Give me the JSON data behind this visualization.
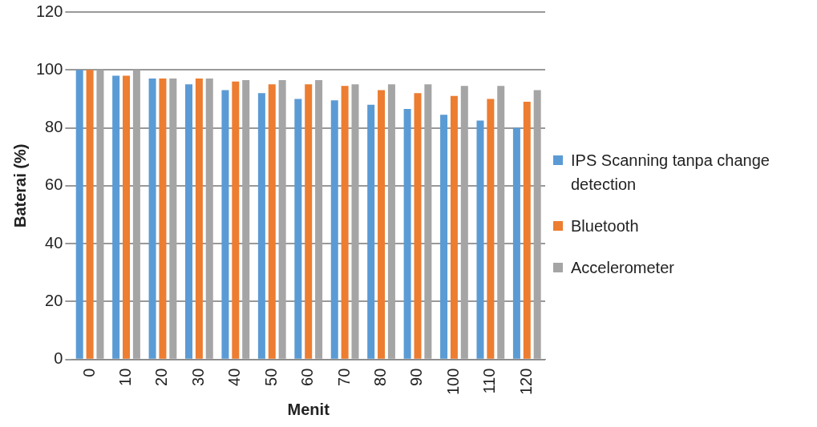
{
  "chart_data": {
    "type": "bar",
    "xlabel": "Menit",
    "ylabel": "Baterai (%)",
    "categories": [
      "0",
      "10",
      "20",
      "30",
      "40",
      "50",
      "60",
      "70",
      "80",
      "90",
      "100",
      "110",
      "120"
    ],
    "series": [
      {
        "name": "IPS Scanning tanpa change detection",
        "color": "#5b9bd5",
        "values": [
          100,
          98,
          97,
          95,
          93,
          92,
          90,
          89.5,
          88,
          86.5,
          84.5,
          82.5,
          80
        ]
      },
      {
        "name": "Bluetooth",
        "color": "#ed7d31",
        "values": [
          100,
          98,
          97,
          97,
          96,
          95,
          95,
          94.5,
          93,
          92,
          91,
          90,
          89
        ]
      },
      {
        "name": "Accelerometer",
        "color": "#a5a5a5",
        "values": [
          100,
          100,
          97,
          97,
          96.5,
          96.5,
          96.5,
          95,
          95,
          95,
          94.5,
          94.5,
          93
        ]
      }
    ],
    "ylim": [
      0,
      120
    ],
    "yticks": [
      0,
      20,
      40,
      60,
      80,
      100,
      120
    ],
    "grid": "y",
    "legend": "right"
  }
}
